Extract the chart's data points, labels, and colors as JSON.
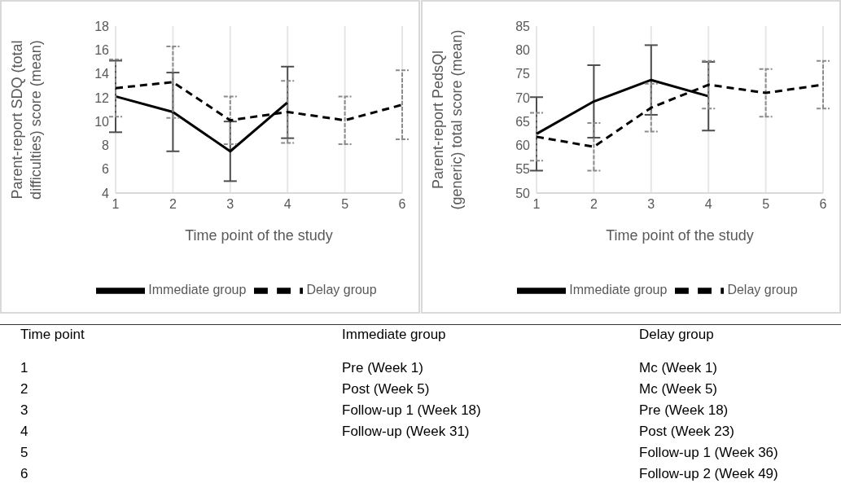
{
  "chart_data": [
    {
      "type": "line",
      "xlabel": "Time point of the study",
      "ylabel": "Parent-report SDQ (total difficulties) score (mean)",
      "categories": [
        "1",
        "2",
        "3",
        "4",
        "5",
        "6"
      ],
      "ylim": [
        4,
        18
      ],
      "yticks": [
        4,
        6,
        8,
        10,
        12,
        14,
        16,
        18
      ],
      "grid": "x",
      "legend": "bottom",
      "series": [
        {
          "name": "Immediate group",
          "color": "#000000",
          "line_style": "solid",
          "values": [
            12.1,
            10.8,
            7.5,
            11.6,
            null,
            null
          ],
          "errors": [
            3.0,
            3.3,
            2.5,
            3.0,
            null,
            null
          ]
        },
        {
          "name": "Delay group",
          "color": "#000000",
          "line_style": "dashed",
          "values": [
            12.8,
            13.3,
            10.1,
            10.8,
            10.1,
            11.4
          ],
          "errors": [
            2.4,
            3.0,
            2.0,
            2.6,
            2.0,
            2.9
          ]
        }
      ],
      "annotations": [
        "Time point",
        "Immediate group",
        "Delay group",
        "1",
        "Pre (Week 1)",
        "Mc (Week 1)",
        "2",
        "Post (Week 5)",
        "Mc (Week 5)",
        "3",
        "Follow-up 1 (Week 18)",
        "Pre (Week 18)",
        "4",
        "Follow-up (Week 31)",
        "Post (Week 23)",
        "5",
        null,
        "Follow-up 1 (Week 36)",
        "6",
        null,
        "Follow-up 2 (Week 49)"
      ]
    },
    {
      "type": "line",
      "xlabel": "Time point of the study",
      "ylabel": "Parent-report PedsQl (generic) total score (mean)",
      "categories": [
        "1",
        "2",
        "3",
        "4",
        "5",
        "6"
      ],
      "ylim": [
        50,
        85
      ],
      "yticks": [
        50,
        55,
        60,
        65,
        70,
        75,
        80,
        85
      ],
      "grid": "x",
      "legend": "bottom",
      "series": [
        {
          "name": "Immediate group",
          "color": "#000000",
          "line_style": "solid",
          "values": [
            62.4,
            69.2,
            73.7,
            70.3,
            null,
            null
          ],
          "errors": [
            7.7,
            7.6,
            7.3,
            7.2,
            null,
            null
          ]
        },
        {
          "name": "Delay group",
          "color": "#000000",
          "line_style": "dashed",
          "values": [
            61.8,
            59.7,
            67.9,
            72.7,
            71.0,
            72.7
          ],
          "errors": [
            5.0,
            5.0,
            5.0,
            5.0,
            5.0,
            5.0
          ]
        }
      ]
    }
  ]
}
